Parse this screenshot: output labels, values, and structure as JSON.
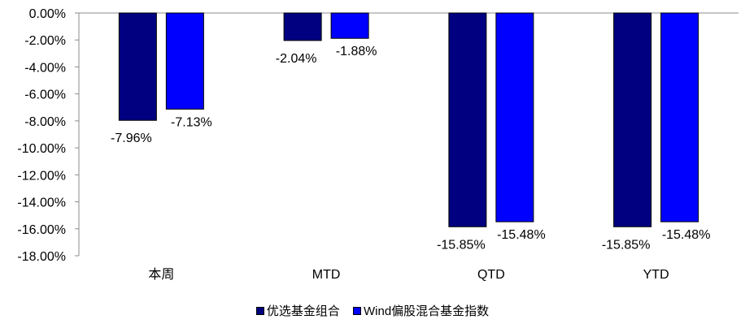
{
  "chart_data": {
    "type": "bar",
    "categories": [
      "本周",
      "MTD",
      "QTD",
      "YTD"
    ],
    "series": [
      {
        "name": "优选基金组合",
        "values": [
          -7.96,
          -2.04,
          -15.85,
          -15.85
        ],
        "color": "#000080"
      },
      {
        "name": "Wind偏股混合基金指数",
        "values": [
          -7.13,
          -1.88,
          -15.48,
          -15.48
        ],
        "color": "#0000FF"
      }
    ],
    "data_labels": [
      [
        "-7.96%",
        "-2.04%",
        "-15.85%",
        "-15.85%"
      ],
      [
        "-7.13%",
        "-1.88%",
        "-15.48%",
        "-15.48%"
      ]
    ],
    "y_ticks": [
      "0.00%",
      "-2.00%",
      "-4.00%",
      "-6.00%",
      "-8.00%",
      "-10.00%",
      "-12.00%",
      "-14.00%",
      "-16.00%",
      "-18.00%"
    ],
    "ylim": [
      -18,
      0
    ],
    "grid": false,
    "legend_position": "bottom"
  }
}
